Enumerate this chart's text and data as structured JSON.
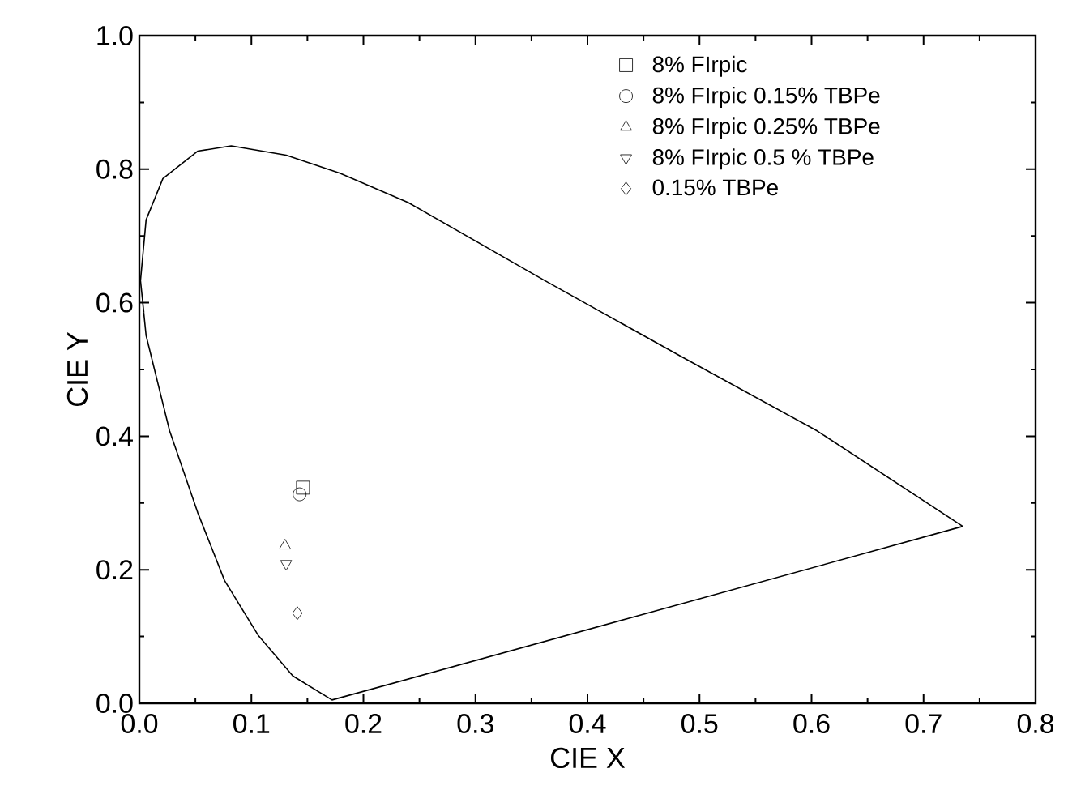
{
  "chart_data": {
    "type": "scatter",
    "xlabel": "CIE X",
    "ylabel": "CIE Y",
    "xlim": [
      0,
      0.8
    ],
    "ylim": [
      0,
      1.0
    ],
    "xticks": [
      {
        "value": 0,
        "label": "0.0"
      },
      0.1,
      0.2,
      0.3,
      0.4,
      0.5,
      0.6,
      0.7,
      0.8
    ],
    "yticks": [
      {
        "value": 0,
        "label": "0.0"
      },
      0.2,
      0.4,
      0.6,
      0.8,
      {
        "value": 1.0,
        "label": "1.0"
      }
    ],
    "grid": false,
    "legend": "top right",
    "series": [
      {
        "type": "line",
        "color": "#000000",
        "marker": "none",
        "line_style": "solid",
        "x": [
          0.004,
          0.001,
          0.006,
          0.021,
          0.052,
          0.082,
          0.131,
          0.179,
          0.24,
          0.362,
          0.483,
          0.605,
          0.735,
          0.172,
          0.137,
          0.106,
          0.076,
          0.052,
          0.027,
          0.006,
          0.003
        ],
        "values": [
          0.585,
          0.633,
          0.724,
          0.786,
          0.827,
          0.835,
          0.821,
          0.794,
          0.75,
          0.633,
          0.52,
          0.408,
          0.265,
          0.005,
          0.041,
          0.102,
          0.184,
          0.286,
          0.408,
          0.551,
          0.6
        ]
      },
      {
        "name": "8% FIrpic",
        "color": "#000000",
        "marker": "square",
        "x": [
          0.146
        ],
        "values": [
          0.323
        ]
      },
      {
        "name": "8% FIrpic 0.15% TBPe",
        "color": "#000000",
        "marker": "circle",
        "x": [
          0.143
        ],
        "values": [
          0.313
        ]
      },
      {
        "name": "8% FIrpic 0.25% TBPe",
        "color": "#000000",
        "marker": "triangle",
        "x": [
          0.13
        ],
        "values": [
          0.236
        ]
      },
      {
        "name": "8% FIrpic 0.5 % TBPe",
        "color": "#000000",
        "marker": "triangle down",
        "x": [
          0.131
        ],
        "values": [
          0.209
        ]
      },
      {
        "name": "0.15% TBPe",
        "color": "#000000",
        "marker": "diamond",
        "x": [
          0.141
        ],
        "values": [
          0.135
        ]
      }
    ]
  }
}
